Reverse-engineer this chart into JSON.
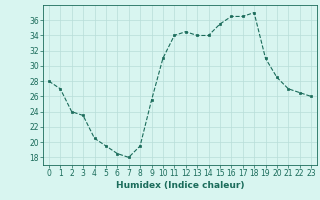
{
  "x": [
    0,
    1,
    2,
    3,
    4,
    5,
    6,
    7,
    8,
    9,
    10,
    11,
    12,
    13,
    14,
    15,
    16,
    17,
    18,
    19,
    20,
    21,
    22,
    23
  ],
  "y": [
    28,
    27,
    24,
    23.5,
    20.5,
    19.5,
    18.5,
    18,
    19.5,
    25.5,
    31,
    34,
    34.5,
    34,
    34,
    35.5,
    36.5,
    36.5,
    37,
    31,
    28.5,
    27,
    26.5,
    26
  ],
  "line_color": "#1a6b5a",
  "marker_color": "#1a6b5a",
  "bg_color": "#d8f5f0",
  "grid_color": "#b8ddd8",
  "xlabel": "Humidex (Indice chaleur)",
  "ylim": [
    17,
    38
  ],
  "xlim": [
    -0.5,
    23.5
  ],
  "yticks": [
    18,
    20,
    22,
    24,
    26,
    28,
    30,
    32,
    34,
    36
  ],
  "xticks": [
    0,
    1,
    2,
    3,
    4,
    5,
    6,
    7,
    8,
    9,
    10,
    11,
    12,
    13,
    14,
    15,
    16,
    17,
    18,
    19,
    20,
    21,
    22,
    23
  ],
  "tick_fontsize": 5.5,
  "xlabel_fontsize": 6.5
}
